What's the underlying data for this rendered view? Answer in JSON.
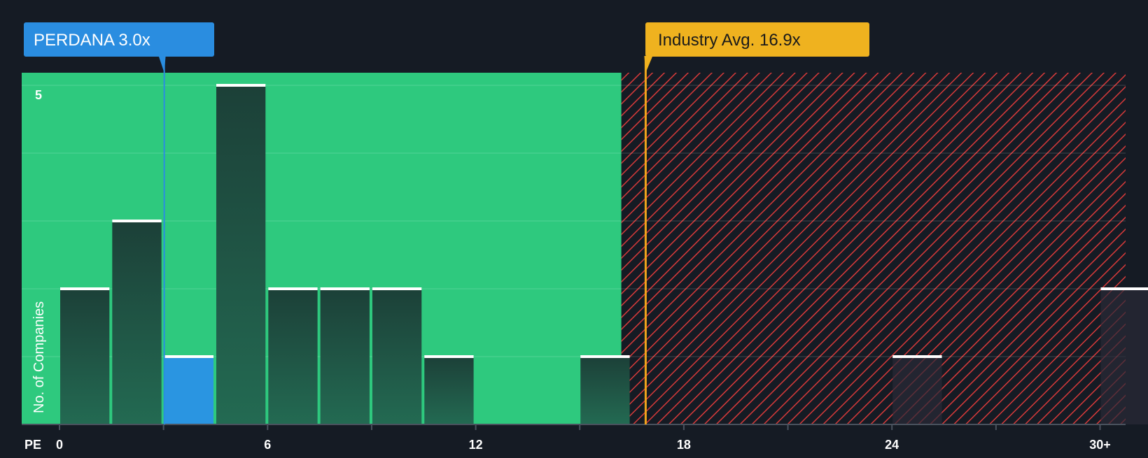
{
  "chart_data": {
    "type": "bar",
    "title": "",
    "xlabel": "PE",
    "ylabel": "No. of Companies",
    "x_ticks": [
      {
        "value": 0,
        "label": "0"
      },
      {
        "value": 6,
        "label": "6"
      },
      {
        "value": 12,
        "label": "12"
      },
      {
        "value": 18,
        "label": "18"
      },
      {
        "value": 24,
        "label": "24"
      },
      {
        "value": 30,
        "label": "30+"
      }
    ],
    "y_ticks": [
      {
        "value": 5,
        "label": "5"
      }
    ],
    "xlim": [
      -1.1,
      30.8
    ],
    "ylim": [
      0,
      5.15
    ],
    "bin_width": 1.5,
    "bins": [
      {
        "start": 0,
        "count": 2
      },
      {
        "start": 1.5,
        "count": 3
      },
      {
        "start": 3,
        "count": 1,
        "highlight": true
      },
      {
        "start": 4.5,
        "count": 5
      },
      {
        "start": 6,
        "count": 2
      },
      {
        "start": 7.5,
        "count": 2
      },
      {
        "start": 9,
        "count": 2
      },
      {
        "start": 10.5,
        "count": 1
      },
      {
        "start": 15,
        "count": 1
      },
      {
        "start": 24,
        "count": 1
      },
      {
        "start": 30,
        "count": 2
      }
    ],
    "company": {
      "label": "PERDANA 3.0x",
      "value": 3.0
    },
    "industry": {
      "label": "Industry Avg. 16.9x",
      "value": 16.9
    },
    "fair_zone_end": 16.2,
    "grid": true,
    "colors": {
      "background": "#151b24",
      "fair_zone": "#2ec97e",
      "bar": "#1f4a3e",
      "bar_highlight": "#2a95e1",
      "bar_cap": "#ffffff",
      "hatch_bg": "#151b24",
      "hatch_line": "#d83a3a",
      "company_label_bg": "#2a8de0",
      "industry_label_bg": "#efb21f",
      "industry_line": "#f0a51c"
    }
  }
}
